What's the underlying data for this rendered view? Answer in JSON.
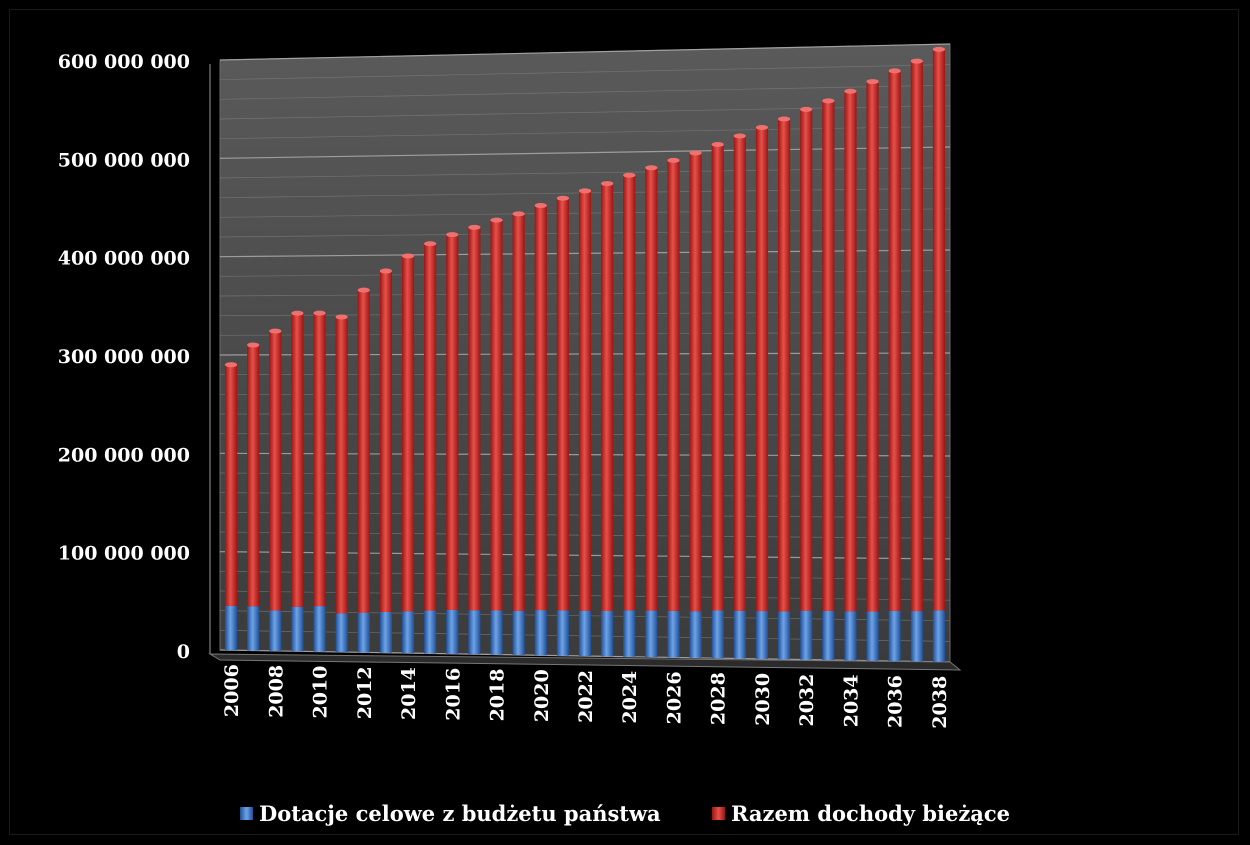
{
  "chart_data": {
    "type": "bar",
    "stacked": true,
    "three_d": true,
    "categories": [
      "2006",
      "2007",
      "2008",
      "2009",
      "2010",
      "2011",
      "2012",
      "2013",
      "2014",
      "2015",
      "2016",
      "2017",
      "2018",
      "2019",
      "2020",
      "2021",
      "2022",
      "2023",
      "2024",
      "2025",
      "2026",
      "2027",
      "2028",
      "2029",
      "2030",
      "2031",
      "2032",
      "2033",
      "2034",
      "2035",
      "2036",
      "2037",
      "2038"
    ],
    "x_tick_labels": [
      "2006",
      "2008",
      "2010",
      "2012",
      "2014",
      "2016",
      "2018",
      "2020",
      "2022",
      "2024",
      "2026",
      "2028",
      "2030",
      "2032",
      "2034",
      "2036",
      "2038"
    ],
    "series": [
      {
        "name": "Dotacje celowe z budżetu państwa",
        "color": "#3a78c9",
        "values": [
          45000000,
          45000000,
          41000000,
          45000000,
          46000000,
          39000000,
          40000000,
          41000000,
          42000000,
          43000000,
          44000000,
          44000000,
          44000000,
          44000000,
          45000000,
          45000000,
          45000000,
          45000000,
          46000000,
          46000000,
          46000000,
          46000000,
          47000000,
          47000000,
          47000000,
          47000000,
          48000000,
          48000000,
          48000000,
          48000000,
          49000000,
          49000000,
          50000000
        ]
      },
      {
        "name": "Razem dochody bieżące",
        "color": "#d42a25",
        "values": [
          245000000,
          265000000,
          283000000,
          297000000,
          296000000,
          299000000,
          325000000,
          343000000,
          357000000,
          368000000,
          376000000,
          383000000,
          390000000,
          396000000,
          403000000,
          410000000,
          417000000,
          424000000,
          431000000,
          438000000,
          445000000,
          452000000,
          459000000,
          467000000,
          475000000,
          483000000,
          491000000,
          499000000,
          508000000,
          517000000,
          526000000,
          535000000,
          545000000
        ]
      }
    ],
    "ylim": [
      0,
      600000000
    ],
    "y_ticks": [
      "0",
      "100 000 000",
      "200 000 000",
      "300 000 000",
      "400 000 000",
      "500 000 000",
      "600 000 000"
    ],
    "grid": true,
    "legend_position": "bottom",
    "colors": {
      "background": "#000000",
      "wall": "#4a4a4a",
      "gridline": "#8a8a8a",
      "text": "#ffffff"
    }
  }
}
